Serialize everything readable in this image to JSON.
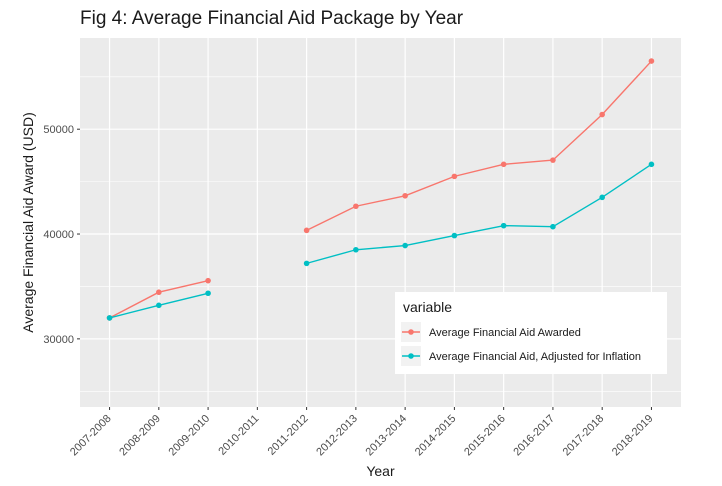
{
  "chart_data": {
    "type": "line",
    "title": "Fig 4: Average Financial Aid Package by Year",
    "xlabel": "Year",
    "ylabel": "Average Financial Aid Award (USD)",
    "categories": [
      "2007-2008",
      "2008-2009",
      "2009-2010",
      "2010-2011",
      "2011-2012",
      "2012-2013",
      "2013-2014",
      "2014-2015",
      "2015-2016",
      "2016-2017",
      "2017-2018",
      "2018-2019"
    ],
    "ylim": [
      23500,
      58700
    ],
    "yticks": [
      30000,
      40000,
      50000
    ],
    "ytick_labels": [
      "30000",
      "40000",
      "50000"
    ],
    "grid": true,
    "legend_title": "variable",
    "legend_position": "bottom-right inside",
    "series": [
      {
        "name": "Average Financial Aid Awarded",
        "color": "#F8766D",
        "values": [
          32000,
          34450,
          35550,
          null,
          40350,
          42650,
          43650,
          45500,
          46650,
          47050,
          51400,
          56500
        ]
      },
      {
        "name": "Average Financial Aid, Adjusted for Inflation",
        "color": "#00BFC4",
        "values": [
          32000,
          33200,
          34350,
          null,
          37200,
          38500,
          38900,
          39850,
          40800,
          40700,
          43500,
          46650
        ]
      }
    ]
  }
}
